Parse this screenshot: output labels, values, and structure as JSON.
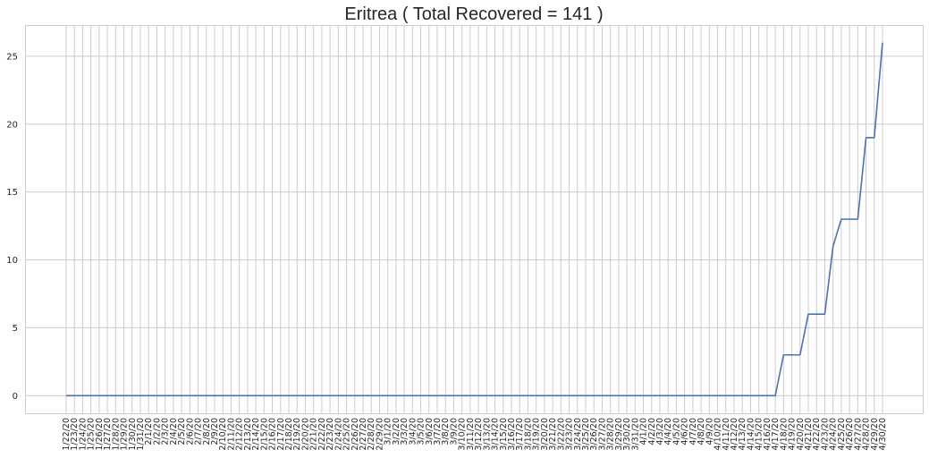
{
  "chart_data": {
    "type": "line",
    "title": "Eritrea ( Total Recovered = 141 )",
    "xlabel": "",
    "ylabel": "",
    "x": [
      "1/22/20",
      "1/23/20",
      "1/24/20",
      "1/25/20",
      "1/26/20",
      "1/27/20",
      "1/28/20",
      "1/29/20",
      "1/30/20",
      "1/31/20",
      "2/1/20",
      "2/2/20",
      "2/3/20",
      "2/4/20",
      "2/5/20",
      "2/6/20",
      "2/7/20",
      "2/8/20",
      "2/9/20",
      "2/10/20",
      "2/11/20",
      "2/12/20",
      "2/13/20",
      "2/14/20",
      "2/15/20",
      "2/16/20",
      "2/17/20",
      "2/18/20",
      "2/19/20",
      "2/20/20",
      "2/21/20",
      "2/22/20",
      "2/23/20",
      "2/24/20",
      "2/25/20",
      "2/26/20",
      "2/27/20",
      "2/28/20",
      "2/29/20",
      "3/1/20",
      "3/2/20",
      "3/3/20",
      "3/4/20",
      "3/5/20",
      "3/6/20",
      "3/7/20",
      "3/8/20",
      "3/9/20",
      "3/10/20",
      "3/11/20",
      "3/12/20",
      "3/13/20",
      "3/14/20",
      "3/15/20",
      "3/16/20",
      "3/17/20",
      "3/18/20",
      "3/19/20",
      "3/20/20",
      "3/21/20",
      "3/22/20",
      "3/23/20",
      "3/24/20",
      "3/25/20",
      "3/26/20",
      "3/27/20",
      "3/28/20",
      "3/29/20",
      "3/30/20",
      "3/31/20",
      "4/1/20",
      "4/2/20",
      "4/3/20",
      "4/4/20",
      "4/5/20",
      "4/6/20",
      "4/7/20",
      "4/8/20",
      "4/9/20",
      "4/10/20",
      "4/11/20",
      "4/12/20",
      "4/13/20",
      "4/14/20",
      "4/15/20",
      "4/16/20",
      "4/17/20",
      "4/18/20",
      "4/19/20",
      "4/20/20",
      "4/21/20",
      "4/22/20",
      "4/23/20",
      "4/24/20",
      "4/25/20",
      "4/26/20",
      "4/27/20",
      "4/28/20",
      "4/29/20",
      "4/30/20"
    ],
    "series": [
      {
        "values": [
          0,
          0,
          0,
          0,
          0,
          0,
          0,
          0,
          0,
          0,
          0,
          0,
          0,
          0,
          0,
          0,
          0,
          0,
          0,
          0,
          0,
          0,
          0,
          0,
          0,
          0,
          0,
          0,
          0,
          0,
          0,
          0,
          0,
          0,
          0,
          0,
          0,
          0,
          0,
          0,
          0,
          0,
          0,
          0,
          0,
          0,
          0,
          0,
          0,
          0,
          0,
          0,
          0,
          0,
          0,
          0,
          0,
          0,
          0,
          0,
          0,
          0,
          0,
          0,
          0,
          0,
          0,
          0,
          0,
          0,
          0,
          0,
          0,
          0,
          0,
          0,
          0,
          0,
          0,
          0,
          0,
          0,
          0,
          0,
          0,
          0,
          0,
          3,
          3,
          3,
          6,
          6,
          6,
          11,
          13,
          13,
          13,
          19,
          19,
          26
        ],
        "color": "#4c72b0"
      }
    ],
    "yticks": [
      0,
      5,
      10,
      15,
      20,
      25
    ],
    "ylim": [
      -1.3,
      27.3
    ],
    "grid": true
  }
}
